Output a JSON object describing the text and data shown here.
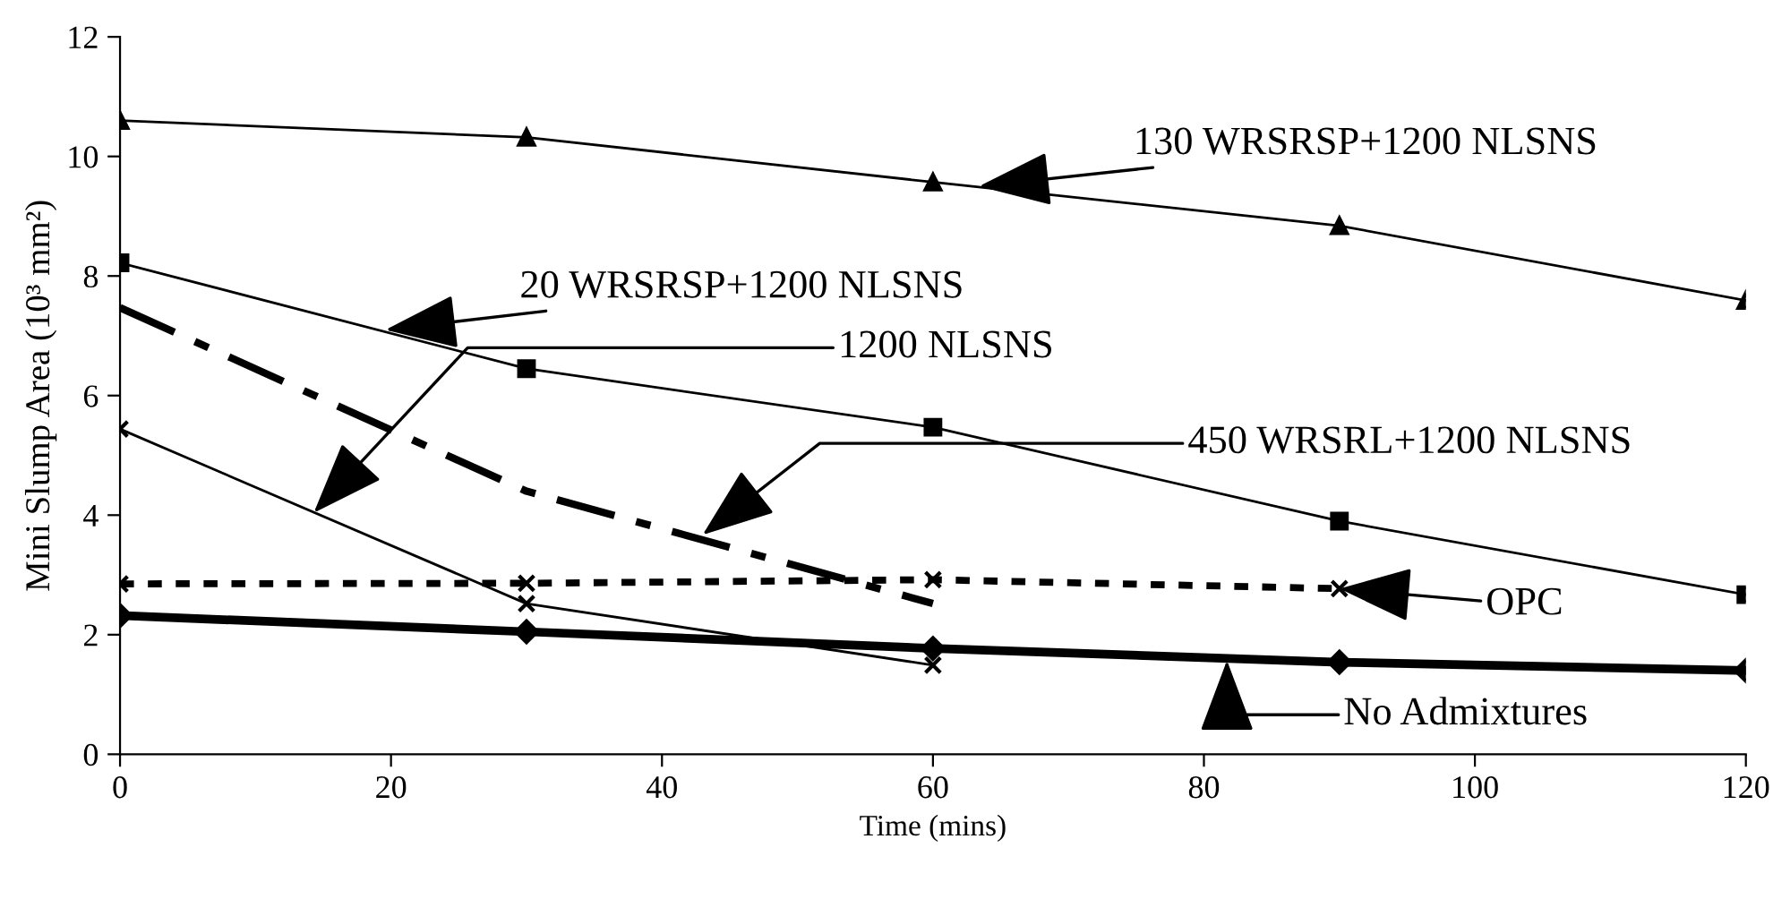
{
  "chart_data": {
    "type": "line",
    "xlabel": "Time (mins)",
    "ylabel": "Mini Slump Area (10³ mm²)",
    "xlim": [
      0,
      120
    ],
    "ylim": [
      0,
      12
    ],
    "xticks": [
      0,
      20,
      40,
      60,
      80,
      100,
      120
    ],
    "yticks": [
      0,
      2,
      4,
      6,
      8,
      10,
      12
    ],
    "grid": false,
    "series": [
      {
        "color": "#000000",
        "marker": "triangle",
        "line_style": "solid",
        "x": [
          0,
          30,
          60,
          90,
          120
        ],
        "values": [
          10.6,
          10.32,
          9.57,
          8.84,
          7.59
        ]
      },
      {
        "color": "#000000",
        "marker": "square",
        "line_style": "solid",
        "x": [
          0,
          30,
          60,
          90,
          120
        ],
        "values": [
          8.22,
          6.45,
          5.47,
          3.9,
          2.67
        ]
      },
      {
        "color": "#000000",
        "marker": "none",
        "line_style": "dashdot",
        "x": [
          0,
          30,
          60
        ],
        "values": [
          7.47,
          4.4,
          2.52
        ]
      },
      {
        "color": "#000000",
        "marker": "cross",
        "line_style": "solid",
        "x": [
          0,
          30,
          60
        ],
        "values": [
          5.44,
          2.52,
          1.49
        ]
      },
      {
        "color": "#000000",
        "marker": "cross",
        "line_style": "dotted",
        "x": [
          0,
          30,
          60,
          90
        ],
        "values": [
          2.85,
          2.86,
          2.92,
          2.77
        ]
      },
      {
        "color": "#000000",
        "marker": "diamond",
        "line_style": "solid",
        "x": [
          0,
          30,
          60,
          90,
          120
        ],
        "values": [
          2.32,
          2.05,
          1.77,
          1.54,
          1.4
        ]
      }
    ],
    "annotations": [
      {
        "text": "130 WRSRSP+1200 NLSNS",
        "x": 63.4,
        "y": 9.5
      },
      {
        "text": "20 WRSRSP+1200 NLSNS",
        "x": 19.6,
        "y": 7.1
      },
      {
        "text": "1200 NLSNS",
        "x": 14.3,
        "y": 4.04
      },
      {
        "text": "450 WRSRL+1200 NLSNS",
        "x": 43,
        "y": 3.67
      },
      "OPC",
      {
        "text": "No Admixtures",
        "x": 81.7,
        "y": 1.57
      }
    ]
  }
}
